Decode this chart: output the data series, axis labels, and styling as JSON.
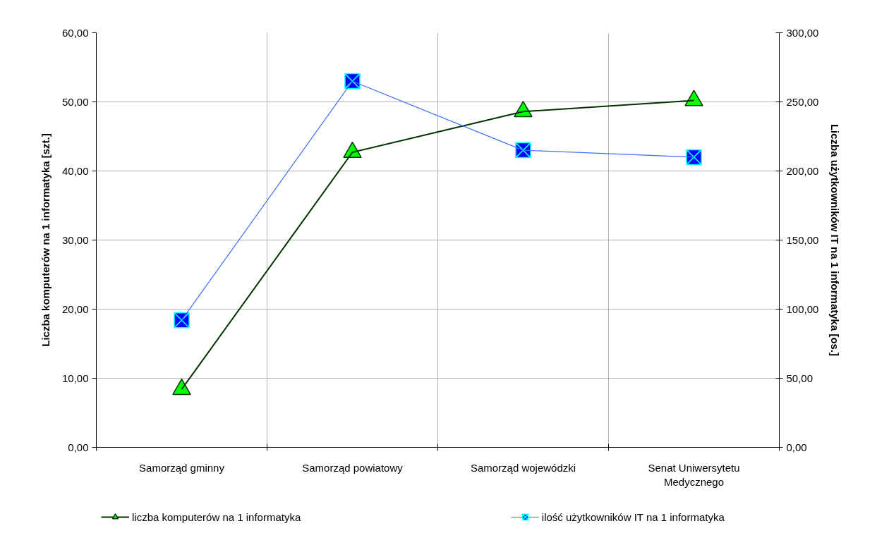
{
  "chart_data": {
    "type": "line",
    "categories": [
      "Samorząd gminny",
      "Samorząd powiatowy",
      "Samorząd wojewódzki",
      "Senat Uniwersytetu Medycznego"
    ],
    "ylabel": "Liczba komputerów na 1 informatyka [szt.]",
    "y2label": "Liczba użytkowników IT na 1 informatyka [os.]",
    "series": [
      {
        "name": "liczba komputerów na 1 informatyka",
        "color": "#00ff00",
        "marker": "triangle",
        "values": [
          8.4,
          42.7,
          48.6,
          50.2
        ]
      },
      {
        "name": "ilość użytkowników IT na 1 informatyka",
        "color": "#0000ff",
        "marker": "square",
        "axis": "y2",
        "values": [
          92,
          265,
          215,
          210
        ]
      }
    ],
    "ylim": [
      0,
      60
    ],
    "yticks": [
      {
        "value": 0,
        "label": "0,00"
      },
      {
        "value": 10,
        "label": "10,00"
      },
      {
        "value": 20,
        "label": "20,00"
      },
      {
        "value": 30,
        "label": "30,00"
      },
      {
        "value": 40,
        "label": "40,00"
      },
      {
        "value": 50,
        "label": "50,00"
      },
      {
        "value": 60,
        "label": "60,00"
      }
    ],
    "y2lim": [
      0,
      300
    ],
    "y2ticks": [
      {
        "value": 0,
        "label": "0,00"
      },
      {
        "value": 50,
        "label": "50,00"
      },
      {
        "value": 100,
        "label": "100,00"
      },
      {
        "value": 150,
        "label": "150,00"
      },
      {
        "value": 200,
        "label": "200,00"
      },
      {
        "value": 250,
        "label": "250,00"
      },
      {
        "value": 300,
        "label": "300,00"
      }
    ],
    "grid": true,
    "legend": "bottom",
    "line_style": "solid"
  }
}
